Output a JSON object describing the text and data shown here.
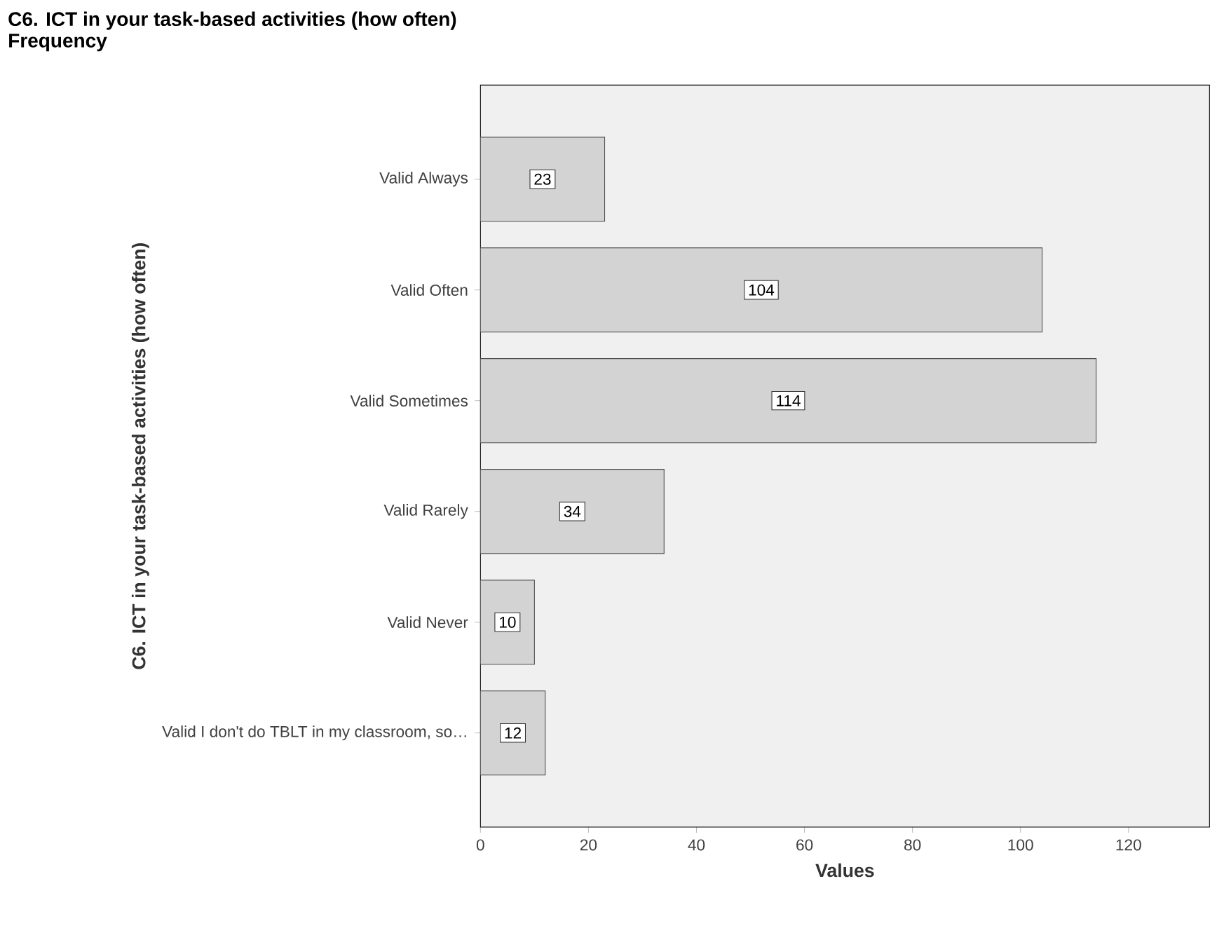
{
  "chart_data": {
    "type": "bar",
    "orientation": "horizontal",
    "title": "C6. ICT in your task-based activities (how often)",
    "subtitle": "Frequency",
    "ylabel": "C6. ICT in your task-based activities (how often)",
    "xlabel": "Values",
    "categories": [
      "Valid Always",
      "Valid Often",
      "Valid Sometimes",
      "Valid Rarely",
      "Valid Never",
      "Valid I don't do TBLT in my classroom, so…"
    ],
    "values": [
      23,
      104,
      114,
      34,
      10,
      12
    ],
    "color": "#d3d3d3",
    "xlim": [
      0,
      135
    ],
    "xticks": [
      0,
      20,
      40,
      60,
      80,
      100,
      120
    ],
    "data_labels": true
  }
}
